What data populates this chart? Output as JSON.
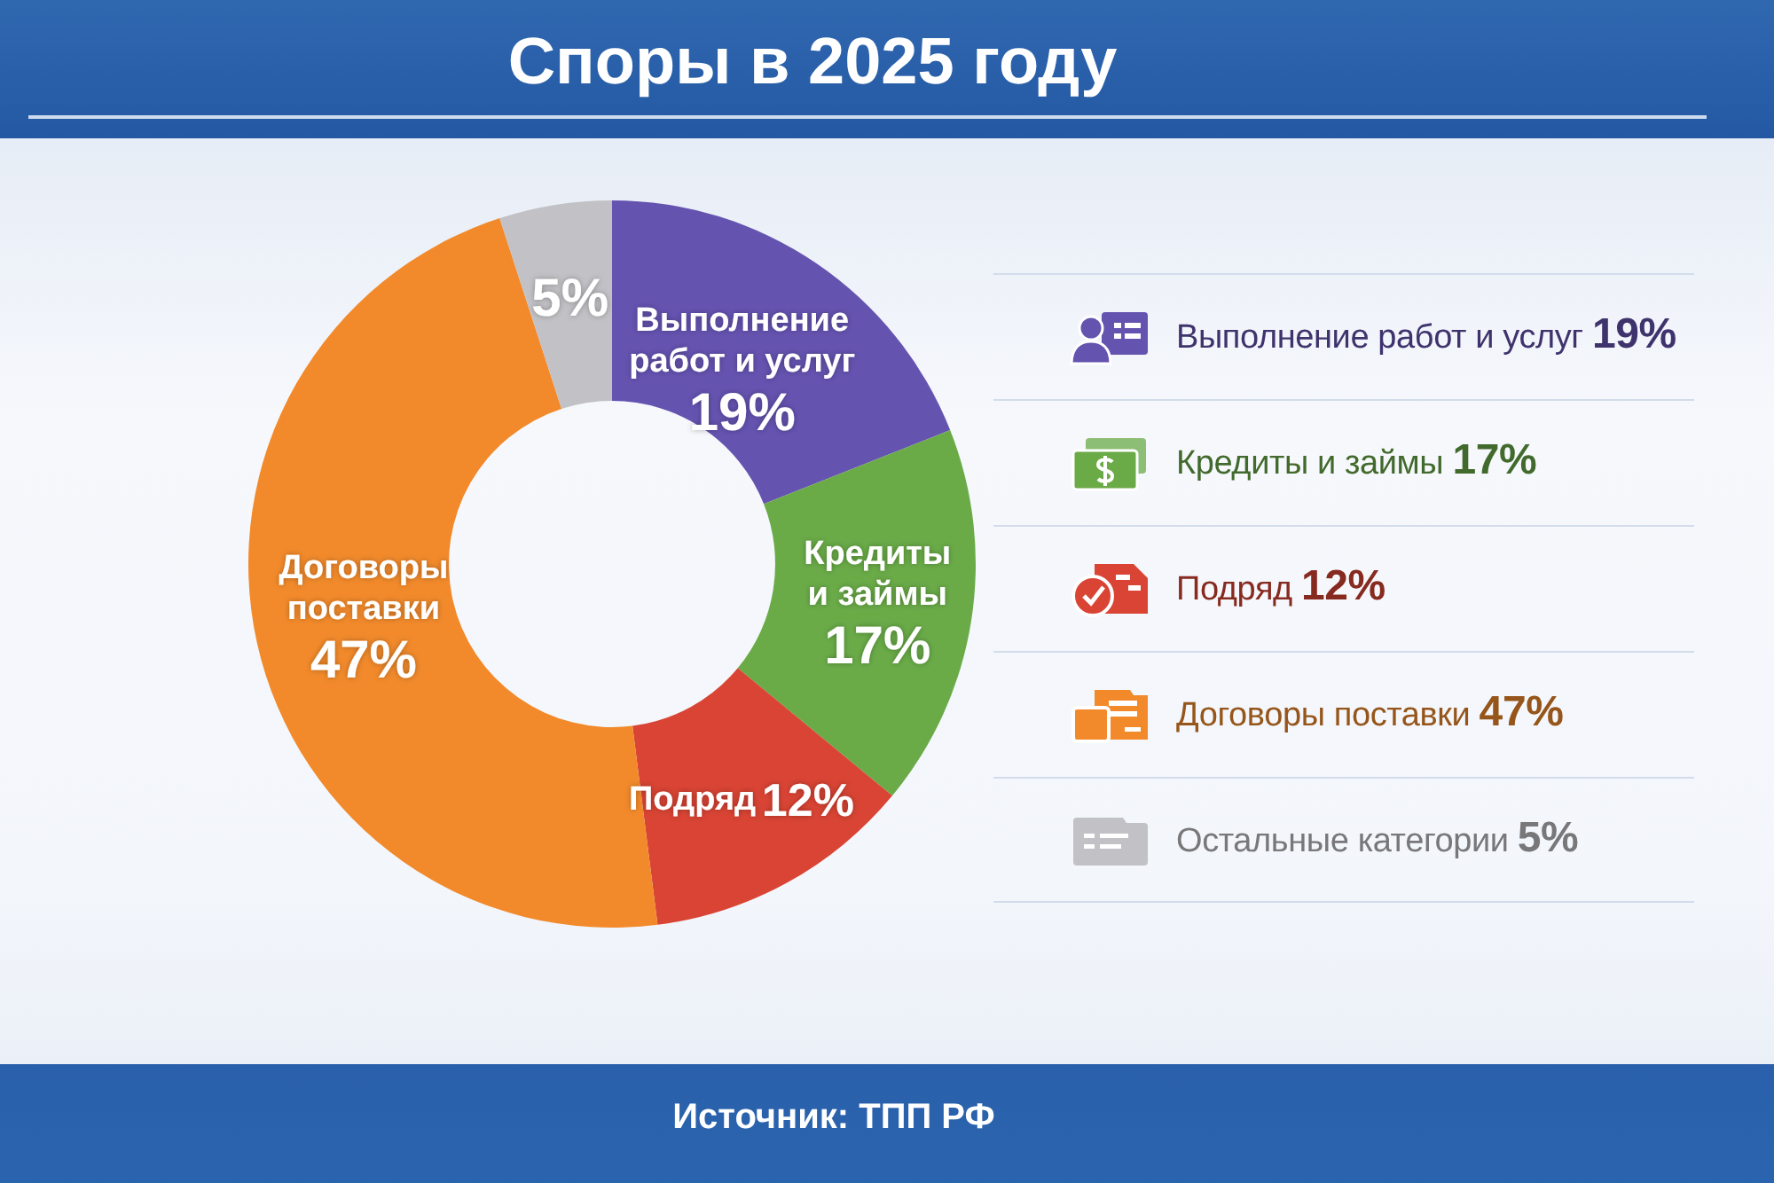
{
  "chart_data": {
    "type": "donut",
    "title": "Споры в 2025 году",
    "categories": [
      "Выполнение работ и услуг",
      "Кредиты и займы",
      "Подряд",
      "Договоры поставки",
      "Остальные категории"
    ],
    "values": [
      19,
      17,
      12,
      47,
      5
    ],
    "colors": [
      "#6553b0",
      "#6aab48",
      "#d94434",
      "#f28a2b",
      "#c2c2c6"
    ],
    "value_labels": [
      "19%",
      "17%",
      "12%",
      "47%",
      "5%"
    ],
    "legend": "right",
    "annotations": [
      "Источник: ТПП РФ"
    ]
  }
}
